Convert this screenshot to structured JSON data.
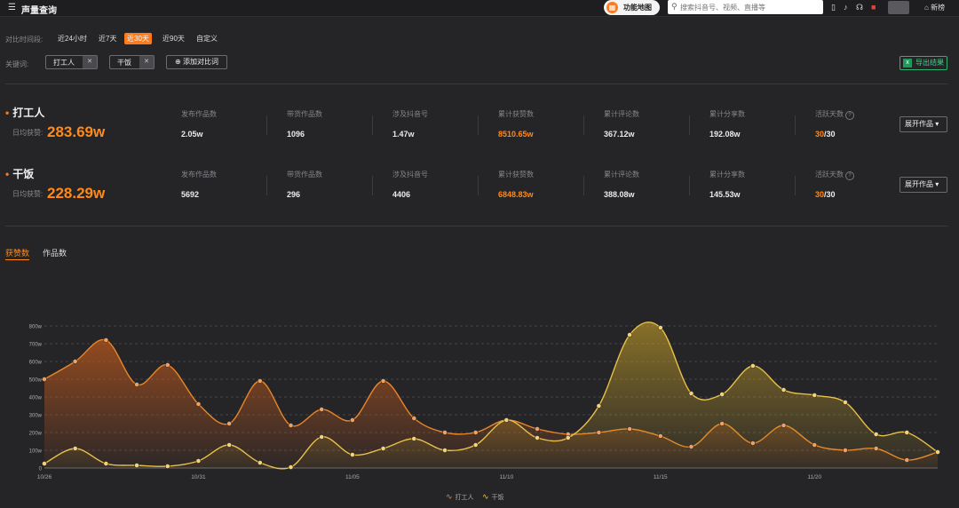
{
  "topbar": {
    "title": "声量查询",
    "feature_label": "功能地图",
    "search_placeholder": "搜索抖音号、视频、直播等",
    "new_label": "新榜"
  },
  "filters": {
    "time_label": "对比时间段:",
    "time_options": [
      "近24小时",
      "近7天",
      "近30天",
      "近90天",
      "自定义"
    ],
    "active_time": "近30天",
    "keyword_label": "关键词:",
    "keywords": [
      "打工人",
      "干饭"
    ],
    "add_label": "添加对比词",
    "export_label": "导出结果"
  },
  "stat_labels": [
    "发布作品数",
    "带货作品数",
    "涉及抖音号",
    "累计获赞数",
    "累计评论数",
    "累计分享数",
    "活跃天数"
  ],
  "avg_label": "日均获赞:",
  "expand_label": "展开作品",
  "keyword_stats": [
    {
      "name": "打工人",
      "avg_likes": "283.69w",
      "values": [
        "2.05w",
        "1096",
        "1.47w",
        "8510.65w",
        "367.12w",
        "192.08w"
      ],
      "active_days": "30",
      "total_days": "/30"
    },
    {
      "name": "干饭",
      "avg_likes": "228.29w",
      "values": [
        "5692",
        "296",
        "4406",
        "6848.83w",
        "388.08w",
        "145.53w"
      ],
      "active_days": "30",
      "total_days": "/30"
    }
  ],
  "chart_tabs": [
    "获赞数",
    "作品数"
  ],
  "colors": {
    "accent": "#ff7a1a",
    "series1": "#e8862a",
    "series2": "#e8c14a",
    "export": "#2fb170"
  },
  "chart_data": {
    "type": "area",
    "x": [
      "10/26",
      "10/27",
      "10/28",
      "10/29",
      "10/30",
      "10/31",
      "11/01",
      "11/02",
      "11/03",
      "11/04",
      "11/05",
      "11/06",
      "11/07",
      "11/08",
      "11/09",
      "11/10",
      "11/11",
      "11/12",
      "11/13",
      "11/14",
      "11/15",
      "11/16",
      "11/17",
      "11/18",
      "11/19",
      "11/20",
      "11/21",
      "11/22",
      "11/23",
      "11/24"
    ],
    "x_tick_labels": [
      "10/26",
      "10/31",
      "11/05",
      "11/10",
      "11/15",
      "11/20"
    ],
    "y_tick_labels": [
      "0",
      "100w",
      "200w",
      "300w",
      "400w",
      "500w",
      "600w",
      "700w",
      "800w"
    ],
    "ylim": [
      0,
      800
    ],
    "grid": true,
    "legend_position": "bottom-center",
    "series": [
      {
        "name": "打工人",
        "values": [
          500,
          600,
          720,
          470,
          580,
          360,
          250,
          490,
          240,
          330,
          270,
          490,
          280,
          200,
          200,
          270,
          220,
          190,
          200,
          220,
          180,
          120,
          250,
          140,
          240,
          130,
          100,
          110,
          45,
          90
        ]
      },
      {
        "name": "干饭",
        "values": [
          25,
          110,
          25,
          15,
          10,
          40,
          130,
          30,
          5,
          175,
          75,
          110,
          165,
          100,
          130,
          270,
          170,
          170,
          350,
          750,
          790,
          420,
          415,
          575,
          440,
          410,
          370,
          190,
          200,
          90
        ]
      }
    ]
  }
}
